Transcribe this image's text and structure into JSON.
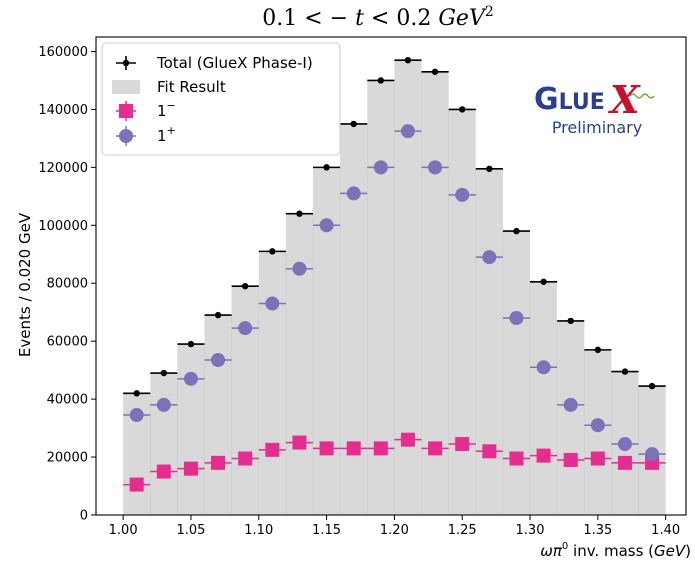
{
  "chart_data": {
    "type": "bar",
    "title": "0.1 < − t < 0.2 GeV²",
    "title_parts": {
      "pre": "0.1 < − ",
      "t": "t",
      "mid": " < 0.2 ",
      "unit": "GeV",
      "sup": "2"
    },
    "xlabel": "ωπ⁰ inv. mass (GeV)",
    "xlabel_parts": {
      "pre": "ωπ",
      "sup": "0",
      "mid": " inv. mass (",
      "unit": "GeV",
      "post": ")"
    },
    "ylabel": "Events / 0.020 GeV",
    "xlim": [
      0.98,
      1.415
    ],
    "ylim": [
      0,
      165000
    ],
    "xticks": [
      1.0,
      1.05,
      1.1,
      1.15,
      1.2,
      1.25,
      1.3,
      1.35,
      1.4
    ],
    "xtick_labels": [
      "1.00",
      "1.05",
      "1.10",
      "1.15",
      "1.20",
      "1.25",
      "1.30",
      "1.35",
      "1.40"
    ],
    "yticks": [
      0,
      20000,
      40000,
      60000,
      80000,
      100000,
      120000,
      140000,
      160000
    ],
    "ytick_labels": [
      "0",
      "20000",
      "40000",
      "60000",
      "80000",
      "100000",
      "120000",
      "140000",
      "160000"
    ],
    "bin_width": 0.02,
    "x": [
      1.01,
      1.03,
      1.05,
      1.07,
      1.09,
      1.11,
      1.13,
      1.15,
      1.17,
      1.19,
      1.21,
      1.23,
      1.25,
      1.27,
      1.29,
      1.31,
      1.33,
      1.35,
      1.37,
      1.39
    ],
    "series": [
      {
        "name": "Total (GlueX Phase-I)",
        "kind": "errorbar",
        "color": "#000000",
        "values": [
          42000,
          49000,
          59000,
          69000,
          79000,
          91000,
          104000,
          120000,
          135000,
          150000,
          157000,
          153000,
          140000,
          119500,
          98000,
          80500,
          67000,
          57000,
          49500,
          44500
        ]
      },
      {
        "name": "Fit Result",
        "kind": "histogram",
        "color": "#d9d9d9",
        "values": [
          42000,
          49000,
          59000,
          69000,
          79000,
          91000,
          104000,
          120000,
          135000,
          150000,
          157000,
          153000,
          140000,
          119500,
          98000,
          80500,
          67000,
          57000,
          49500,
          44500
        ]
      },
      {
        "name": "1⁻",
        "label_base": "1",
        "label_sup": "−",
        "kind": "square",
        "color": "#e52d8f",
        "values": [
          10500,
          15000,
          16000,
          18000,
          19500,
          22500,
          25000,
          23000,
          23000,
          23000,
          26000,
          23000,
          24500,
          22000,
          19500,
          20500,
          19000,
          19500,
          18000,
          18000
        ]
      },
      {
        "name": "1⁺",
        "label_base": "1",
        "label_sup": "+",
        "kind": "circle",
        "color": "#7b72b8",
        "values": [
          34500,
          38000,
          47000,
          53500,
          64500,
          73000,
          85000,
          100000,
          111000,
          120000,
          132500,
          120000,
          110500,
          89000,
          68000,
          51000,
          38000,
          31000,
          24500,
          21000
        ]
      }
    ],
    "legend_position": "top-left",
    "grid": false,
    "watermark": {
      "logo_text_left": "GLUE",
      "logo_text_right": "X",
      "label": "Preliminary",
      "logo_color": "#2b3f91",
      "x_color": "#c8102e"
    }
  }
}
